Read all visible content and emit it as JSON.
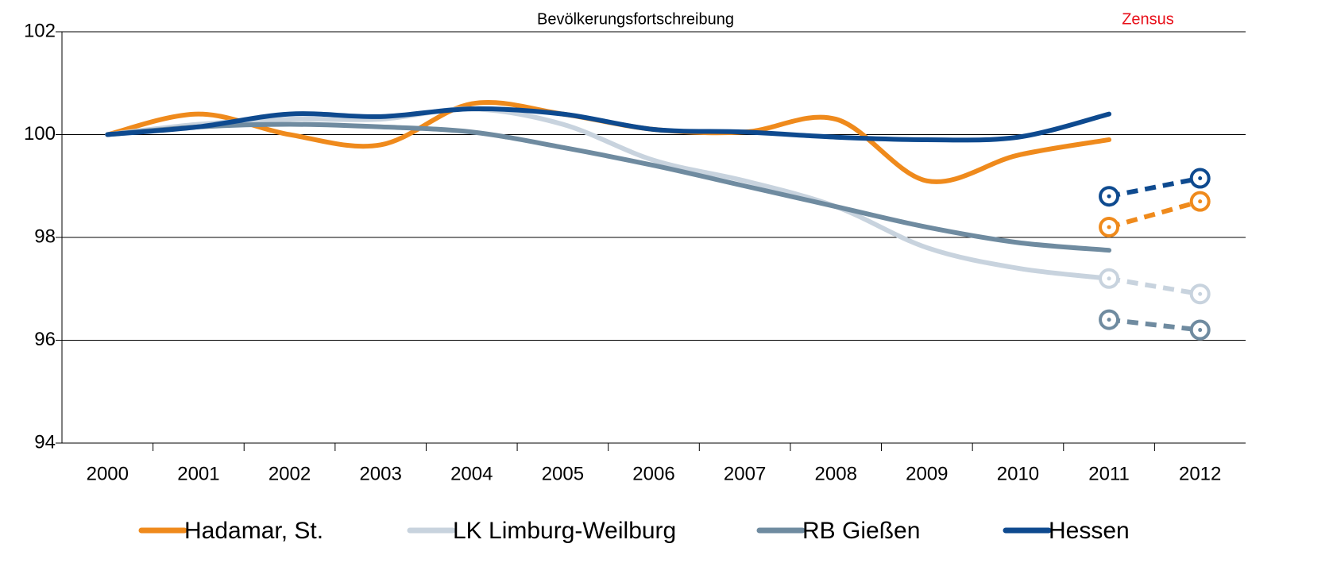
{
  "chart_data": {
    "type": "line",
    "annotations": [
      {
        "text": "Bevölkerungsfortschreibung",
        "color": "#000000"
      },
      {
        "text": "Zensus",
        "color": "#e8101a"
      }
    ],
    "categories": [
      "2000",
      "2001",
      "2002",
      "2003",
      "2004",
      "2005",
      "2006",
      "2007",
      "2008",
      "2009",
      "2010",
      "2011",
      "2012"
    ],
    "series": [
      {
        "name": "Hadamar, St.",
        "color": "#ef8a1c",
        "values": [
          100,
          100.4,
          100.0,
          99.8,
          100.6,
          100.4,
          100.1,
          100.05,
          100.3,
          99.1,
          99.6,
          99.9,
          null
        ],
        "zensus_values": [
          null,
          null,
          null,
          null,
          null,
          null,
          null,
          null,
          null,
          null,
          null,
          98.2,
          98.7
        ]
      },
      {
        "name": "LK Limburg-Weilburg",
        "color": "#c8d3de",
        "values": [
          100,
          100.2,
          100.3,
          100.3,
          100.5,
          100.2,
          99.5,
          99.1,
          98.6,
          97.8,
          97.4,
          97.2,
          null
        ],
        "zensus_values": [
          null,
          null,
          null,
          null,
          null,
          null,
          null,
          null,
          null,
          null,
          null,
          97.2,
          96.9
        ]
      },
      {
        "name": "RB Gießen",
        "color": "#6f8ba0",
        "values": [
          100,
          100.15,
          100.2,
          100.15,
          100.05,
          99.75,
          99.4,
          99.0,
          98.6,
          98.2,
          97.9,
          97.75,
          null
        ],
        "zensus_values": [
          null,
          null,
          null,
          null,
          null,
          null,
          null,
          null,
          null,
          null,
          null,
          96.4,
          96.2
        ]
      },
      {
        "name": "Hessen",
        "color": "#0e4a8f",
        "values": [
          100,
          100.15,
          100.4,
          100.35,
          100.5,
          100.4,
          100.1,
          100.05,
          99.95,
          99.9,
          99.95,
          100.4,
          null
        ],
        "zensus_values": [
          null,
          null,
          null,
          null,
          null,
          null,
          null,
          null,
          null,
          null,
          null,
          98.8,
          99.15
        ]
      }
    ],
    "ylim": [
      94,
      102
    ],
    "yticks": [
      94,
      96,
      98,
      100,
      102
    ],
    "grid": true,
    "smooth": true,
    "legend": "bottom"
  }
}
